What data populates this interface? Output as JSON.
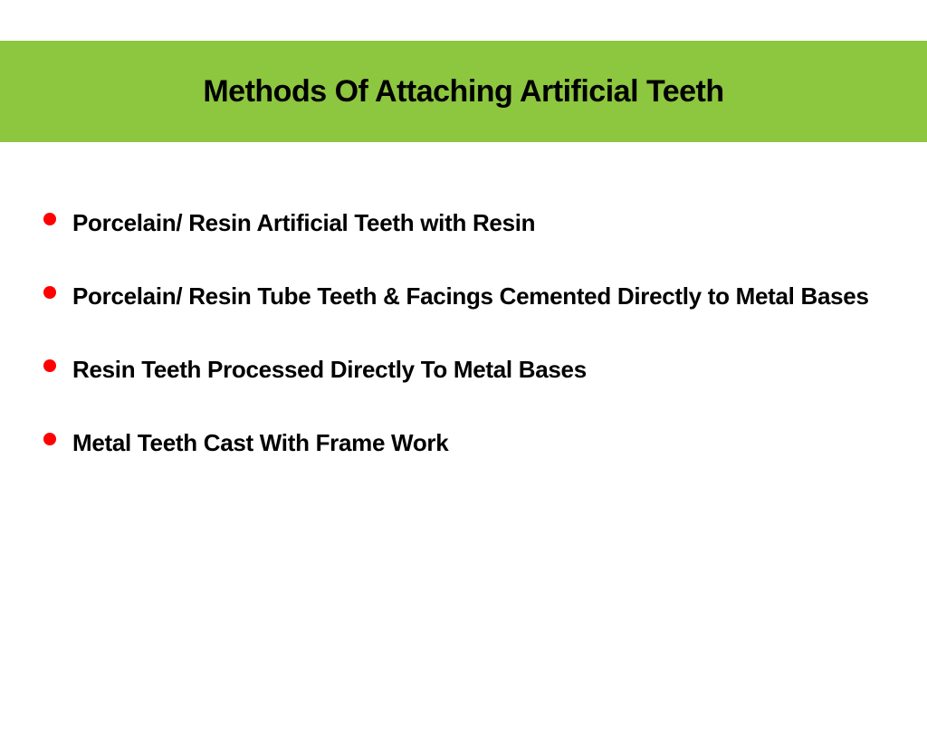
{
  "slide": {
    "title": "Methods Of Attaching Artificial Teeth",
    "title_bar_color": "#8dc63f",
    "title_fontsize": 34,
    "bullet_color": "#ff0000",
    "bullet_fontsize": 26,
    "bullets": [
      "Porcelain/ Resin Artificial Teeth with Resin",
      "Porcelain/ Resin Tube Teeth & Facings Cemented Directly to Metal Bases",
      "Resin Teeth Processed Directly To Metal Bases",
      "Metal Teeth Cast With Frame Work"
    ]
  }
}
